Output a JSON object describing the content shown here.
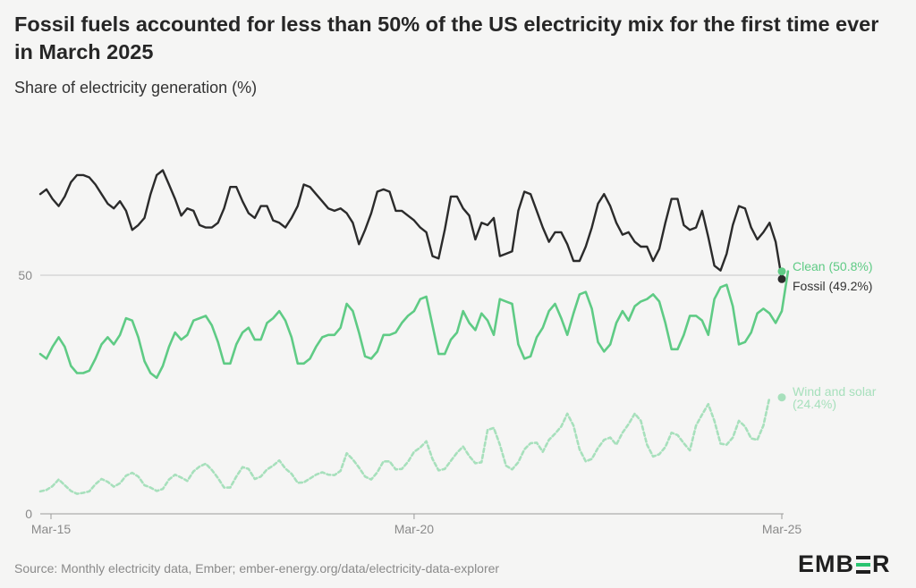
{
  "header": {
    "title": "Fossil fuels accounted for less than 50% of the US electricity mix for the first time ever in March 2025",
    "subtitle": "Share of electricity generation (%)"
  },
  "footer": {
    "source": "Source: Monthly electricity data, Ember; ember-energy.org/data/electricity-data-explorer",
    "logo_text": "EMBER"
  },
  "colors": {
    "fossil": "#2b2b2b",
    "clean": "#5fcb85",
    "wind_solar": "#a7e0bc",
    "gridline": "#c8c8c8",
    "axis": "#9a9a9a"
  },
  "chart_data": {
    "type": "line",
    "title": "Fossil fuels accounted for less than 50% of the US electricity mix for the first time ever in March 2025",
    "subtitle": "Share of electricity generation (%)",
    "x_start": "Mar-15",
    "x_end": "Mar-25",
    "x_ticks": [
      "Mar-15",
      "Mar-20",
      "Mar-25"
    ],
    "y_ticks": [
      0,
      50
    ],
    "ylim": [
      0,
      80
    ],
    "grid": "horizontal at 50",
    "legend": "direct labels at line ends",
    "end_labels": {
      "clean": "Clean (50.8%)",
      "fossil": "Fossil (49.2%)",
      "wind_solar": "Wind and solar (24.4%)"
    },
    "series": [
      {
        "key": "fossil",
        "values": [
          67.0,
          68.0,
          66.0,
          64.5,
          66.5,
          69.5,
          71.0,
          71.0,
          70.5,
          69.0,
          67.0,
          65.0,
          64.0,
          65.5,
          63.5,
          59.5,
          60.5,
          62.0,
          67.0,
          71.0,
          72.0,
          69.0,
          66.0,
          62.5,
          64.0,
          63.5,
          60.5,
          60.0,
          60.0,
          61.0,
          64.0,
          68.5,
          68.5,
          65.5,
          63.0,
          62.0,
          64.5,
          64.5,
          61.5,
          61.0,
          60.0,
          62.0,
          64.5,
          69.0,
          68.5,
          67.0,
          65.5,
          64.0,
          63.5,
          64.0,
          63.0,
          61.0,
          56.5,
          59.5,
          63.0,
          67.5,
          68.0,
          67.5,
          63.5,
          63.5,
          62.5,
          61.5,
          60.0,
          59.0,
          54.0,
          53.5,
          59.5,
          66.5,
          66.5,
          64.0,
          62.5,
          57.5,
          61.0,
          60.5,
          62.0,
          54.0,
          54.5,
          55.0,
          63.5,
          67.5,
          67.0,
          63.5,
          60.0,
          57.0,
          59.0,
          59.0,
          56.5,
          53.0,
          53.0,
          56.0,
          60.0,
          65.0,
          67.0,
          64.5,
          61.0,
          58.5,
          59.0,
          57.0,
          56.0,
          56.0,
          53.0,
          55.5,
          61.0,
          66.0,
          66.0,
          60.5,
          59.5,
          60.0,
          63.5,
          58.0,
          52.0,
          51.0,
          54.5,
          60.5,
          64.5,
          64.0,
          60.0,
          57.5,
          59.0,
          61.0,
          57.0,
          49.2
        ]
      },
      {
        "key": "clean",
        "values": [
          33.5,
          32.5,
          35.0,
          37.0,
          35.0,
          31.0,
          29.5,
          29.5,
          30.0,
          32.5,
          35.5,
          37.0,
          35.5,
          37.5,
          41.0,
          40.5,
          37.0,
          32.0,
          29.5,
          28.5,
          31.0,
          35.0,
          38.0,
          36.5,
          37.5,
          40.5,
          41.0,
          41.5,
          39.5,
          36.0,
          31.5,
          31.5,
          35.5,
          38.0,
          39.0,
          36.5,
          36.5,
          40.0,
          41.0,
          42.5,
          40.5,
          37.0,
          31.5,
          31.5,
          32.5,
          35.0,
          37.0,
          37.5,
          37.5,
          39.0,
          44.0,
          42.5,
          38.0,
          33.0,
          32.5,
          34.0,
          37.5,
          37.5,
          38.0,
          40.0,
          41.5,
          42.5,
          45.0,
          45.5,
          39.5,
          33.5,
          33.5,
          36.5,
          38.0,
          42.5,
          40.0,
          38.5,
          42.0,
          40.5,
          37.5,
          45.0,
          44.5,
          44.0,
          35.5,
          32.5,
          33.0,
          37.0,
          39.0,
          42.5,
          44.0,
          41.0,
          37.5,
          42.0,
          46.0,
          46.5,
          43.0,
          36.0,
          34.0,
          35.5,
          40.0,
          42.5,
          40.5,
          43.5,
          44.5,
          45.0,
          46.0,
          44.5,
          40.0,
          34.5,
          34.5,
          37.5,
          41.5,
          41.5,
          40.5,
          37.5,
          45.0,
          47.5,
          48.0,
          43.5,
          35.5,
          36.0,
          38.0,
          42.0,
          43.0,
          42.0,
          40.0,
          42.5,
          50.8
        ]
      },
      {
        "key": "wind_solar",
        "values": [
          4.7,
          5.0,
          5.8,
          7.2,
          6.0,
          4.8,
          4.2,
          4.4,
          4.7,
          6.2,
          7.3,
          6.7,
          5.7,
          6.4,
          8.0,
          8.6,
          7.8,
          6.0,
          5.5,
          4.8,
          5.2,
          7.2,
          8.2,
          7.6,
          6.9,
          8.9,
          9.9,
          10.5,
          9.2,
          7.5,
          5.5,
          5.5,
          7.8,
          9.8,
          9.4,
          7.3,
          7.8,
          9.3,
          10.1,
          11.2,
          9.5,
          8.4,
          6.5,
          6.6,
          7.4,
          8.2,
          8.7,
          8.2,
          8.1,
          9.0,
          12.7,
          11.4,
          9.7,
          7.8,
          7.2,
          8.7,
          11.0,
          11.0,
          9.3,
          9.4,
          10.9,
          13.0,
          13.9,
          15.2,
          11.5,
          9.1,
          9.4,
          11.1,
          12.8,
          14.1,
          12.1,
          10.6,
          10.8,
          17.6,
          18.0,
          14.5,
          10.1,
          9.3,
          10.8,
          13.5,
          14.8,
          14.9,
          13.0,
          15.5,
          16.8,
          18.3,
          21.0,
          18.5,
          13.5,
          11.0,
          11.5,
          13.8,
          15.5,
          16.0,
          14.5,
          17.0,
          18.8,
          21.0,
          19.5,
          14.5,
          12.0,
          12.5,
          14.0,
          17.0,
          16.5,
          14.8,
          13.3,
          18.5,
          20.8,
          23.0,
          19.5,
          14.7,
          14.5,
          16.0,
          19.5,
          18.3,
          15.8,
          15.5,
          18.5,
          24.4
        ]
      }
    ]
  }
}
